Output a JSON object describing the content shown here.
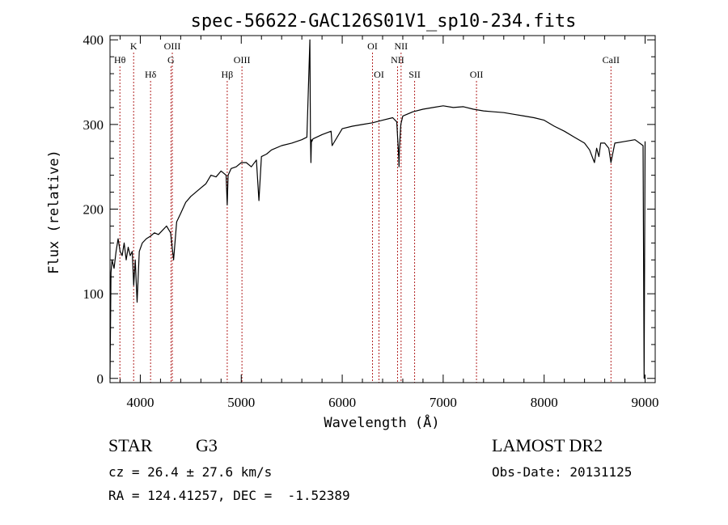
{
  "chart_data": {
    "type": "line",
    "title": "spec-56622-GAC126S01V1_sp10-234.fits",
    "xlabel": "Wavelength (Å)",
    "ylabel": "Flux (relative)",
    "xlim": [
      3700,
      9100
    ],
    "ylim": [
      -5,
      405
    ],
    "x_ticks": [
      4000,
      5000,
      6000,
      7000,
      8000,
      9000
    ],
    "y_ticks": [
      0,
      100,
      200,
      300,
      400
    ],
    "grid": false,
    "legend": "none",
    "line_color": "#000000",
    "marker_color": "#b22222",
    "series": [
      {
        "x": [
          3700,
          3710,
          3720,
          3740,
          3760,
          3780,
          3800,
          3820,
          3840,
          3860,
          3880,
          3900,
          3920,
          3935,
          3950,
          3968,
          3990,
          4020,
          4060,
          4100,
          4140,
          4180,
          4220,
          4260,
          4300,
          4330,
          4360,
          4400,
          4450,
          4500,
          4550,
          4600,
          4650,
          4700,
          4750,
          4800,
          4850,
          4861,
          4870,
          4900,
          4950,
          5000,
          5050,
          5100,
          5150,
          5175,
          5200,
          5250,
          5300,
          5400,
          5500,
          5600,
          5650,
          5680,
          5685,
          5690,
          5695,
          5700,
          5710,
          5800,
          5890,
          5900,
          6000,
          6100,
          6200,
          6300,
          6400,
          6500,
          6540,
          6560,
          6563,
          6566,
          6580,
          6600,
          6700,
          6800,
          6900,
          7000,
          7100,
          7200,
          7300,
          7400,
          7500,
          7600,
          7700,
          7800,
          7900,
          8000,
          8100,
          8200,
          8300,
          8400,
          8450,
          8498,
          8520,
          8542,
          8560,
          8600,
          8640,
          8662,
          8700,
          8800,
          8900,
          8980,
          8990,
          9000
        ],
        "y": [
          0,
          125,
          140,
          130,
          150,
          165,
          150,
          145,
          160,
          140,
          155,
          145,
          150,
          110,
          140,
          90,
          150,
          160,
          165,
          168,
          172,
          170,
          175,
          180,
          172,
          140,
          185,
          195,
          208,
          215,
          220,
          225,
          230,
          240,
          238,
          245,
          240,
          205,
          240,
          248,
          250,
          255,
          255,
          250,
          258,
          210,
          262,
          265,
          270,
          275,
          278,
          282,
          285,
          400,
          285,
          255,
          282,
          280,
          283,
          288,
          292,
          275,
          295,
          298,
          300,
          302,
          305,
          308,
          303,
          260,
          250,
          270,
          300,
          310,
          315,
          318,
          320,
          322,
          320,
          321,
          318,
          316,
          315,
          314,
          312,
          310,
          308,
          305,
          298,
          292,
          285,
          278,
          270,
          255,
          272,
          262,
          278,
          278,
          272,
          255,
          278,
          280,
          282,
          275,
          0,
          280
        ]
      }
    ],
    "lines": [
      {
        "label": "Hθ",
        "x": 3798,
        "row": 2
      },
      {
        "label": "K",
        "x": 3934,
        "row": 1
      },
      {
        "label": "Hδ",
        "x": 4102,
        "row": 3
      },
      {
        "label": "OIII",
        "x": 4317,
        "row": 1
      },
      {
        "label": "G",
        "x": 4304,
        "row": 2
      },
      {
        "label": "Hβ",
        "x": 4861,
        "row": 3
      },
      {
        "label": "OIII",
        "x": 5007,
        "row": 2
      },
      {
        "label": "OI",
        "x": 6300,
        "row": 1
      },
      {
        "label": "OI",
        "x": 6364,
        "row": 3
      },
      {
        "label": "NII",
        "x": 6548,
        "row": 2
      },
      {
        "label": "NII",
        "x": 6583,
        "row": 1
      },
      {
        "label": "SII",
        "x": 6717,
        "row": 3
      },
      {
        "label": "OII",
        "x": 7330,
        "row": 3
      },
      {
        "label": "CaII",
        "x": 8662,
        "row": 2
      }
    ]
  },
  "info": {
    "object_type": "STAR",
    "subclass": "G3",
    "survey": "LAMOST DR2",
    "cz": "cz = 26.4 ± 27.6 km/s",
    "obs_date": "Obs-Date: 20131125",
    "coords": "RA = 124.41257, DEC =  -1.52389"
  }
}
